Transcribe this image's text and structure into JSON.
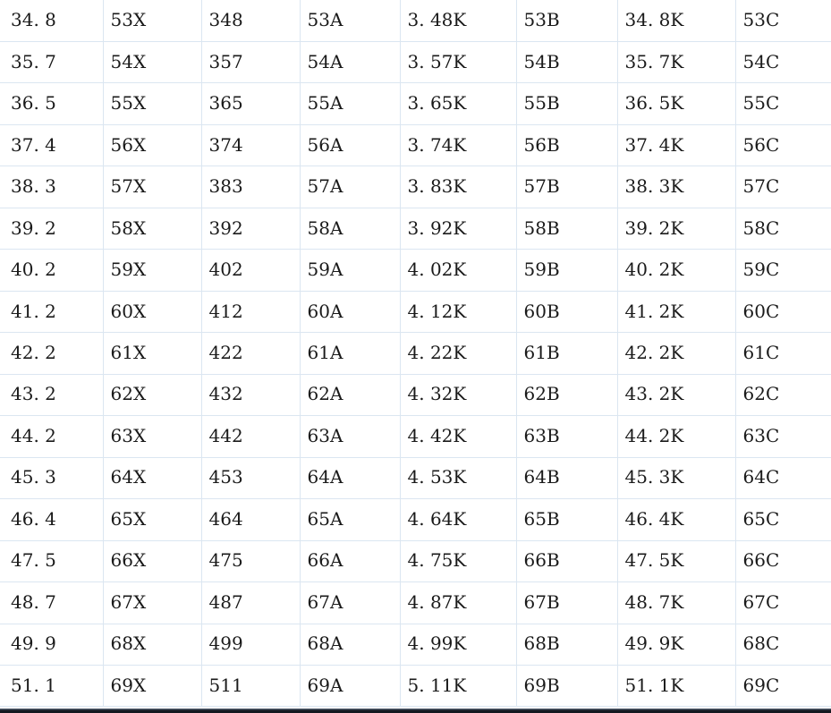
{
  "app": {
    "background": "#ffffff",
    "grid_color": "#dbe6f1",
    "text_color": "#1a1a1a",
    "bottom_bar_top_color": "#4d5766",
    "bottom_bar_color": "#141920"
  },
  "table": {
    "has_header": false,
    "column_count": 8,
    "row_count": 17,
    "rows": [
      [
        "34.8",
        "53X",
        "348",
        "53A",
        "3.48K",
        "53B",
        "34.8K",
        "53C"
      ],
      [
        "35.7",
        "54X",
        "357",
        "54A",
        "3.57K",
        "54B",
        "35.7K",
        "54C"
      ],
      [
        "36.5",
        "55X",
        "365",
        "55A",
        "3.65K",
        "55B",
        "36.5K",
        "55C"
      ],
      [
        "37.4",
        "56X",
        "374",
        "56A",
        "3.74K",
        "56B",
        "37.4K",
        "56C"
      ],
      [
        "38.3",
        "57X",
        "383",
        "57A",
        "3.83K",
        "57B",
        "38.3K",
        "57C"
      ],
      [
        "39.2",
        "58X",
        "392",
        "58A",
        "3.92K",
        "58B",
        "39.2K",
        "58C"
      ],
      [
        "40.2",
        "59X",
        "402",
        "59A",
        "4.02K",
        "59B",
        "40.2K",
        "59C"
      ],
      [
        "41.2",
        "60X",
        "412",
        "60A",
        "4.12K",
        "60B",
        "41.2K",
        "60C"
      ],
      [
        "42.2",
        "61X",
        "422",
        "61A",
        "4.22K",
        "61B",
        "42.2K",
        "61C"
      ],
      [
        "43.2",
        "62X",
        "432",
        "62A",
        "4.32K",
        "62B",
        "43.2K",
        "62C"
      ],
      [
        "44.2",
        "63X",
        "442",
        "63A",
        "4.42K",
        "63B",
        "44.2K",
        "63C"
      ],
      [
        "45.3",
        "64X",
        "453",
        "64A",
        "4.53K",
        "64B",
        "45.3K",
        "64C"
      ],
      [
        "46.4",
        "65X",
        "464",
        "65A",
        "4.64K",
        "65B",
        "46.4K",
        "65C"
      ],
      [
        "47.5",
        "66X",
        "475",
        "66A",
        "4.75K",
        "66B",
        "47.5K",
        "66C"
      ],
      [
        "48.7",
        "67X",
        "487",
        "67A",
        "4.87K",
        "67B",
        "48.7K",
        "67C"
      ],
      [
        "49.9",
        "68X",
        "499",
        "68A",
        "4.99K",
        "68B",
        "49.9K",
        "68C"
      ],
      [
        "51.1",
        "69X",
        "511",
        "69A",
        "5.11K",
        "69B",
        "51.1K",
        "69C"
      ]
    ]
  }
}
